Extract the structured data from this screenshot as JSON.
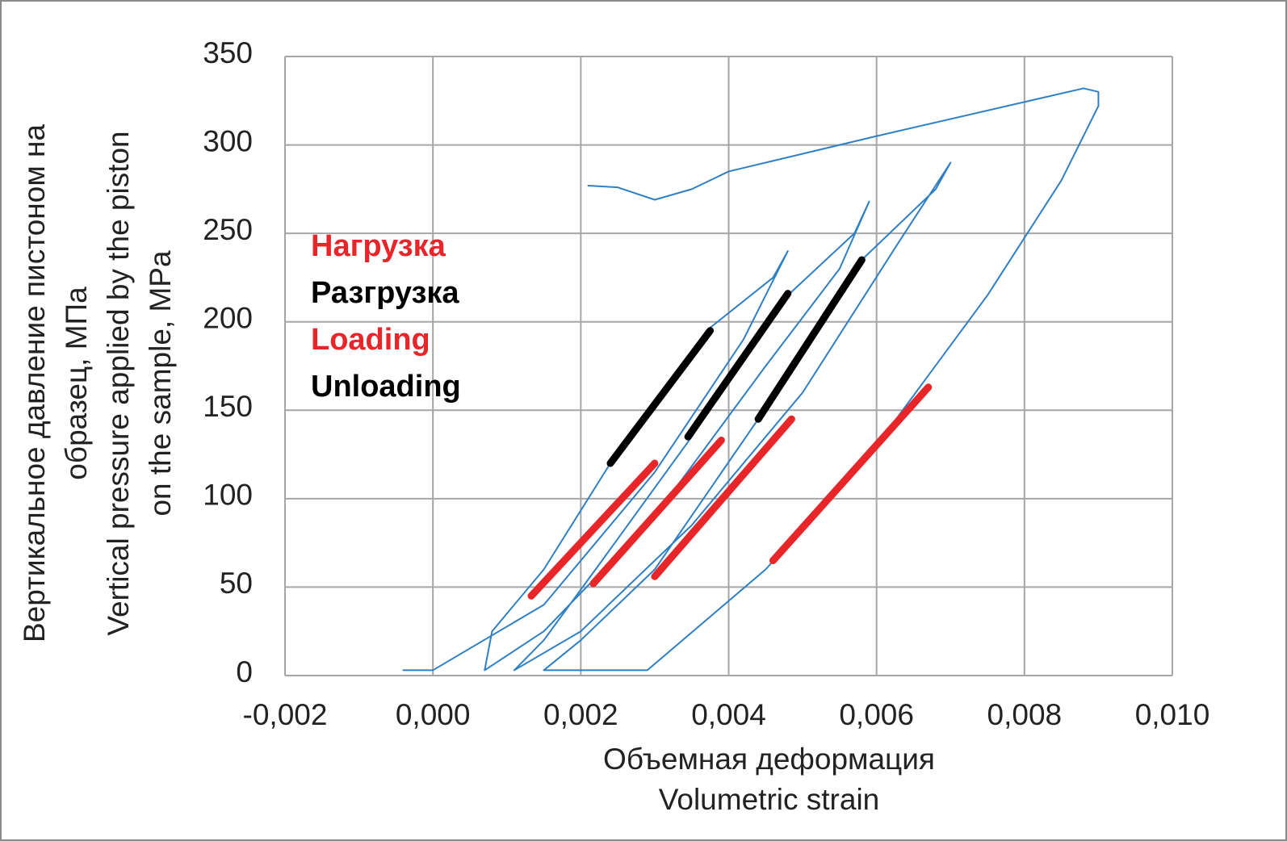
{
  "chart_data": {
    "type": "line",
    "x_label": [
      "Объемная деформация",
      "Volumetric strain"
    ],
    "y_label": [
      "Вертикальное давление пистоном на",
      "образец, МПа",
      "Vertical pressure applied by the piston",
      "on the sample, MPa"
    ],
    "xlim": [
      -0.002,
      0.01
    ],
    "ylim": [
      0,
      350
    ],
    "xticks": [
      {
        "value": -0.002,
        "label": "-0,002"
      },
      {
        "value": 0.0,
        "label": "0,000"
      },
      {
        "value": 0.002,
        "label": "0,002"
      },
      {
        "value": 0.004,
        "label": "0,004"
      },
      {
        "value": 0.006,
        "label": "0,006"
      },
      {
        "value": 0.008,
        "label": "0,008"
      },
      {
        "value": 0.01,
        "label": "0,010"
      }
    ],
    "yticks": [
      0,
      50,
      100,
      150,
      200,
      250,
      300,
      350
    ],
    "grid": true,
    "annotations": [
      {
        "text": "Нагрузка",
        "color": "#e8262a"
      },
      {
        "text": "Разгрузка",
        "color": "#000000"
      },
      {
        "text": "Loading",
        "color": "#e8262a"
      },
      {
        "text": "Unloading",
        "color": "#000000"
      }
    ],
    "series": [
      {
        "color": "#2f7fc4",
        "x": [
          -0.0004,
          0.0,
          0.0015,
          0.003,
          0.0042,
          0.0048,
          0.0046,
          0.0037,
          0.0024,
          0.0015,
          0.0008,
          0.0007,
          0.0015,
          0.003,
          0.0045,
          0.0055,
          0.0059,
          0.0057,
          0.0048,
          0.0035,
          0.0022,
          0.0015,
          0.0011,
          0.002,
          0.0035,
          0.005,
          0.0063,
          0.007,
          0.0068,
          0.0058,
          0.0044,
          0.003,
          0.002,
          0.0015,
          0.0029,
          0.0045,
          0.006,
          0.0075,
          0.0085,
          0.009,
          0.009,
          0.0088,
          0.006,
          0.004,
          0.0035,
          0.003,
          0.0025,
          0.0021
        ],
        "y": [
          3,
          3,
          40,
          115,
          190,
          240,
          225,
          195,
          120,
          60,
          25,
          3,
          25,
          90,
          175,
          230,
          268,
          250,
          215,
          135,
          60,
          20,
          3,
          25,
          85,
          160,
          245,
          290,
          275,
          235,
          145,
          60,
          20,
          3,
          3,
          60,
          130,
          215,
          280,
          322,
          330,
          332,
          305,
          285,
          275,
          269,
          276,
          277
        ]
      },
      {
        "color": "#e8262a",
        "x": [
          0.00133,
          0.003,
          null,
          0.00217,
          0.0039,
          null,
          0.003,
          0.00485,
          null,
          0.0046,
          0.0067
        ],
        "y": [
          45,
          120,
          null,
          52,
          133,
          null,
          56,
          145,
          null,
          65,
          163
        ]
      },
      {
        "color": "#000000",
        "x": [
          0.0024,
          0.00375,
          null,
          0.00345,
          0.0048,
          null,
          0.0044,
          0.0058
        ],
        "y": [
          120,
          195,
          null,
          135,
          216,
          null,
          145,
          235
        ]
      }
    ]
  }
}
